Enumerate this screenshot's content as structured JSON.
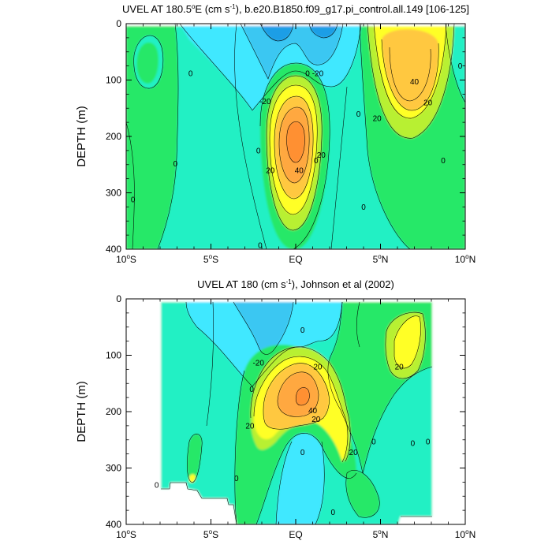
{
  "palette": {
    "deep_blue": "#1e9ee6",
    "blue": "#3bc7f2",
    "light_cyan": "#40e8ff",
    "teal": "#20f0c4",
    "light_green": "#28e868",
    "yellow_green": "#b8f030",
    "yellow": "#ffff28",
    "light_orange": "#ffc840",
    "orange": "#ffa840",
    "dark_orange": "#ff9030"
  },
  "chart_data": [
    {
      "type": "contour",
      "title_parts": [
        "UVEL AT 180.5",
        "o",
        "E (cm s",
        "-1",
        "), b.e20.B1850.f09_g17.pi_control.all.149 [106-125]"
      ],
      "ylabel": "DEPTH (m)",
      "x_ticks": [
        {
          "value": -10,
          "main": "10",
          "sup": "o",
          "suffix": "S"
        },
        {
          "value": -5,
          "main": "5",
          "sup": "o",
          "suffix": "S"
        },
        {
          "value": 0,
          "main": "EQ",
          "sup": "",
          "suffix": ""
        },
        {
          "value": 5,
          "main": "5",
          "sup": "o",
          "suffix": "N"
        },
        {
          "value": 10,
          "main": "10",
          "sup": "o",
          "suffix": "N"
        }
      ],
      "y_ticks": [
        {
          "value": 0,
          "label": "0"
        },
        {
          "value": 100,
          "label": "100"
        },
        {
          "value": 200,
          "label": "200"
        },
        {
          "value": 300,
          "label": "300"
        },
        {
          "value": 400,
          "label": "400"
        }
      ],
      "xlim": [
        -10,
        10
      ],
      "ylim": [
        400,
        0
      ],
      "contour_labels": [
        {
          "text": "0",
          "lat": -9.6,
          "depth": 312
        },
        {
          "text": "0",
          "lat": -6.2,
          "depth": 88
        },
        {
          "text": "0",
          "lat": -7.1,
          "depth": 248
        },
        {
          "text": "0",
          "lat": -2.2,
          "depth": 225
        },
        {
          "text": "0",
          "lat": -2.1,
          "depth": 393
        },
        {
          "text": "0",
          "lat": 0.7,
          "depth": 88
        },
        {
          "text": "0",
          "lat": 1.2,
          "depth": 243
        },
        {
          "text": "0",
          "lat": 3.7,
          "depth": 160
        },
        {
          "text": "0",
          "lat": 4.0,
          "depth": 325
        },
        {
          "text": "0",
          "lat": 8.7,
          "depth": 243
        },
        {
          "text": "0",
          "lat": 9.7,
          "depth": 75
        },
        {
          "text": "-20",
          "lat": -1.8,
          "depth": 138
        },
        {
          "text": "-20",
          "lat": 1.3,
          "depth": 88
        },
        {
          "text": "20",
          "lat": -1.5,
          "depth": 260
        },
        {
          "text": "20",
          "lat": 1.5,
          "depth": 233
        },
        {
          "text": "20",
          "lat": 4.8,
          "depth": 168
        },
        {
          "text": "20",
          "lat": 7.8,
          "depth": 140
        },
        {
          "text": "40",
          "lat": 0.2,
          "depth": 260
        },
        {
          "text": "40",
          "lat": 7.0,
          "depth": 103
        }
      ]
    },
    {
      "type": "contour",
      "title_parts": [
        "UVEL AT 180 (cm s",
        "-1",
        "), Johnson et al (2002)"
      ],
      "ylabel": "DEPTH (m)",
      "x_ticks": [
        {
          "value": -10,
          "main": "10",
          "sup": "o",
          "suffix": "S"
        },
        {
          "value": -5,
          "main": "5",
          "sup": "o",
          "suffix": "S"
        },
        {
          "value": 0,
          "main": "EQ",
          "sup": "",
          "suffix": ""
        },
        {
          "value": 5,
          "main": "5",
          "sup": "o",
          "suffix": "N"
        },
        {
          "value": 10,
          "main": "10",
          "sup": "o",
          "suffix": "N"
        }
      ],
      "y_ticks": [
        {
          "value": 0,
          "label": "0"
        },
        {
          "value": 100,
          "label": "100"
        },
        {
          "value": 200,
          "label": "200"
        },
        {
          "value": 300,
          "label": "300"
        },
        {
          "value": 400,
          "label": "400"
        }
      ],
      "xlim": [
        -10,
        10
      ],
      "ylim": [
        400,
        0
      ],
      "data_extent": {
        "lat": [
          -8,
          8
        ],
        "depth": [
          5,
          400
        ]
      },
      "contour_labels": [
        {
          "text": "0",
          "lat": -8.2,
          "depth": 330
        },
        {
          "text": "0",
          "lat": -3.5,
          "depth": 318
        },
        {
          "text": "0",
          "lat": -2.6,
          "depth": 160
        },
        {
          "text": "0",
          "lat": 0.4,
          "depth": 55
        },
        {
          "text": "0",
          "lat": 0.4,
          "depth": 272
        },
        {
          "text": "0",
          "lat": 2.2,
          "depth": 378
        },
        {
          "text": "0",
          "lat": 4.6,
          "depth": 253
        },
        {
          "text": "0",
          "lat": 6.9,
          "depth": 256
        },
        {
          "text": "0",
          "lat": 7.8,
          "depth": 253
        },
        {
          "text": "-20",
          "lat": -2.2,
          "depth": 113
        },
        {
          "text": "20",
          "lat": 1.3,
          "depth": 120
        },
        {
          "text": "20",
          "lat": -2.7,
          "depth": 225
        },
        {
          "text": "20",
          "lat": 1.2,
          "depth": 213
        },
        {
          "text": "20",
          "lat": 3.4,
          "depth": 272
        },
        {
          "text": "20",
          "lat": 6.1,
          "depth": 120
        },
        {
          "text": "40",
          "lat": 1.0,
          "depth": 198
        }
      ]
    }
  ]
}
